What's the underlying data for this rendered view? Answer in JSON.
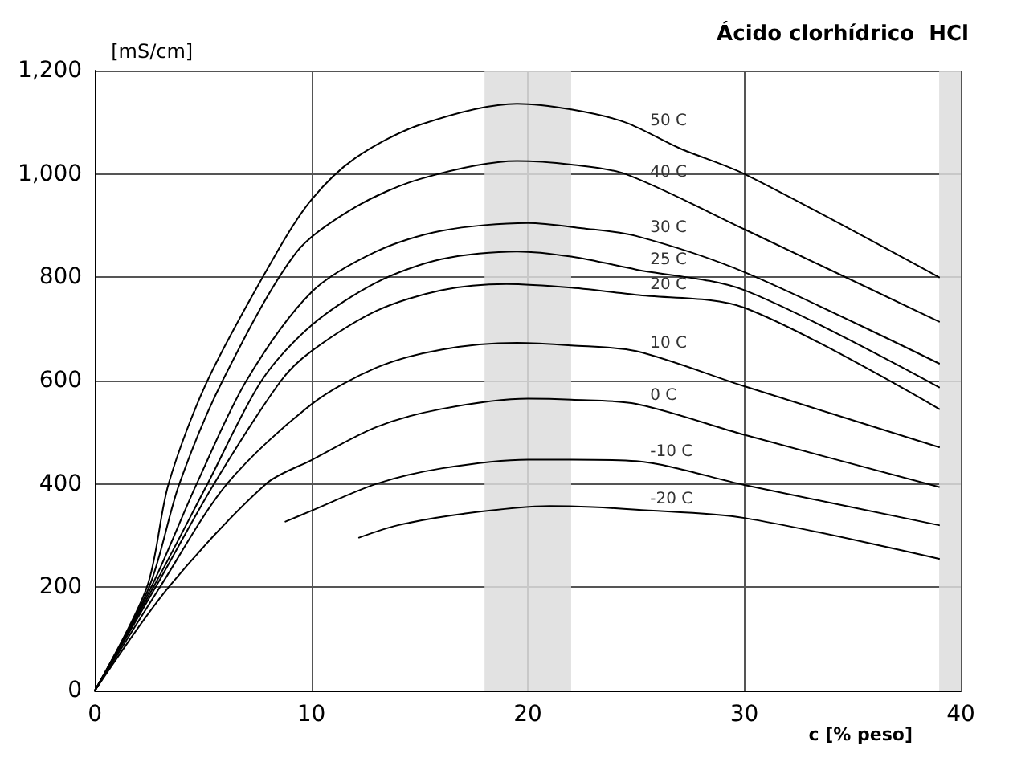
{
  "chart_data": {
    "type": "line",
    "title": "Ácido clorhídrico  HCl",
    "xlabel": "c [% peso]",
    "ylabel": "[mS/cm]",
    "xlim": [
      0,
      40
    ],
    "xticks": [
      0,
      10,
      20,
      30,
      40
    ],
    "ylim": [
      0,
      1200
    ],
    "yticks": [
      0,
      200,
      400,
      600,
      800,
      {
        "value": 1000,
        "label": "1,000"
      },
      {
        "value": 1200,
        "label": "1,200"
      }
    ],
    "grid": true,
    "legend": false,
    "marker": "none",
    "line_style": "solid",
    "bands": [
      {
        "axis": "x",
        "from": 18,
        "to": 22,
        "color": "#dddddd"
      },
      {
        "axis": "x",
        "from": 39,
        "to": 40,
        "color": "#dddddd"
      }
    ],
    "series": [
      {
        "name": "50 C",
        "color": "#000000",
        "x": [
          0,
          2.4,
          3.4,
          5.2,
          8.4,
          10,
          12,
          15,
          19.5,
          22,
          24.5,
          27,
          30,
          39
        ],
        "values": [
          0,
          200,
          400,
          600,
          848,
          950,
          1030,
          1095,
          1136,
          1125,
          1100,
          1050,
          1000,
          800
        ]
      },
      {
        "name": "40 C",
        "color": "#000000",
        "x": [
          0,
          2.5,
          3.9,
          5.9,
          9.3,
          12,
          15,
          19.5,
          22,
          24.5,
          30,
          39
        ],
        "values": [
          0,
          200,
          400,
          600,
          848,
          935,
          990,
          1025,
          1018,
          1000,
          893,
          714
        ]
      },
      {
        "name": "30 C",
        "color": "#000000",
        "x": [
          0,
          2.6,
          4.7,
          7,
          10,
          13,
          16,
          20,
          22.5,
          25,
          30,
          39
        ],
        "values": [
          0,
          200,
          400,
          600,
          771,
          850,
          890,
          905,
          895,
          880,
          810,
          633
        ]
      },
      {
        "name": "25 C",
        "color": "#000000",
        "x": [
          0,
          2.7,
          5.2,
          7.7,
          10,
          13,
          16,
          19.5,
          22,
          25,
          30,
          39
        ],
        "values": [
          0,
          200,
          400,
          600,
          707,
          790,
          835,
          850,
          840,
          815,
          775,
          587
        ]
      },
      {
        "name": "20 C",
        "color": "#000000",
        "x": [
          0,
          2.8,
          5.5,
          8.6,
          10,
          13,
          16,
          19,
          22,
          25,
          30,
          39
        ],
        "values": [
          0,
          200,
          400,
          600,
          657,
          735,
          775,
          787,
          780,
          766,
          741,
          545
        ]
      },
      {
        "name": "10 C",
        "color": "#000000",
        "x": [
          0,
          3,
          6.1,
          10,
          13,
          16,
          19.5,
          22,
          25,
          30,
          39
        ],
        "values": [
          0,
          200,
          400,
          554,
          625,
          660,
          673,
          668,
          657,
          589,
          471
        ]
      },
      {
        "name": "0 C",
        "color": "#000000",
        "x": [
          0,
          3.4,
          7.9,
          10,
          13,
          16,
          20,
          22,
          25,
          30,
          39
        ],
        "values": [
          0,
          200,
          400,
          446,
          510,
          545,
          565,
          563,
          555,
          495,
          394
        ]
      },
      {
        "name": "-10 C",
        "color": "#000000",
        "x": [
          8.8,
          10,
          13,
          16,
          20,
          22,
          25,
          30,
          39
        ],
        "values": [
          327,
          348,
          400,
          430,
          447,
          447,
          444,
          398,
          320
        ]
      },
      {
        "name": "-20 C",
        "color": "#000000",
        "x": [
          12.2,
          14,
          17,
          21,
          23,
          25,
          30,
          39
        ],
        "values": [
          296,
          320,
          342,
          357,
          355,
          350,
          334,
          255
        ]
      }
    ]
  }
}
